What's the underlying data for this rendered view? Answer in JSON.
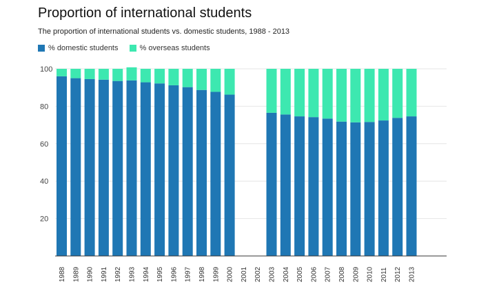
{
  "chart_data": {
    "type": "bar",
    "stacked": true,
    "title": "Proportion of international students",
    "subtitle": "The proportion of international students vs. domestic students, 1988 - 2013",
    "xlabel": "",
    "ylabel": "",
    "ylim": [
      0,
      100
    ],
    "yticks": [
      20,
      40,
      60,
      80,
      100
    ],
    "grid": true,
    "legend_position": "top-left",
    "categories": [
      "1988",
      "1989",
      "1990",
      "1991",
      "1992",
      "1993",
      "1994",
      "1995",
      "1996",
      "1997",
      "1998",
      "1999",
      "2000",
      "2001",
      "2002",
      "2003",
      "2004",
      "2005",
      "2006",
      "2007",
      "2008",
      "2009",
      "2010",
      "2011",
      "2012",
      "2013"
    ],
    "series": [
      {
        "name": "% domestic students",
        "color": "#1f77b4",
        "values": [
          96,
          95,
          94.5,
          94.2,
          93.5,
          93.8,
          92.8,
          92.2,
          91.2,
          90.2,
          88.7,
          87.7,
          86.2,
          null,
          null,
          76.5,
          75.6,
          74.6,
          74.2,
          73.4,
          71.8,
          71.4,
          71.6,
          72.4,
          73.8,
          74.6
        ]
      },
      {
        "name": "% overseas students",
        "color": "#3de8b0",
        "values": [
          4,
          5,
          5.5,
          5.8,
          6.5,
          7,
          7.2,
          7.8,
          8.8,
          9.8,
          11.3,
          12.3,
          13.8,
          null,
          null,
          23.5,
          24.4,
          25.4,
          25.8,
          26.6,
          28.2,
          28.6,
          28.4,
          27.6,
          26.2,
          25.4
        ]
      }
    ]
  }
}
